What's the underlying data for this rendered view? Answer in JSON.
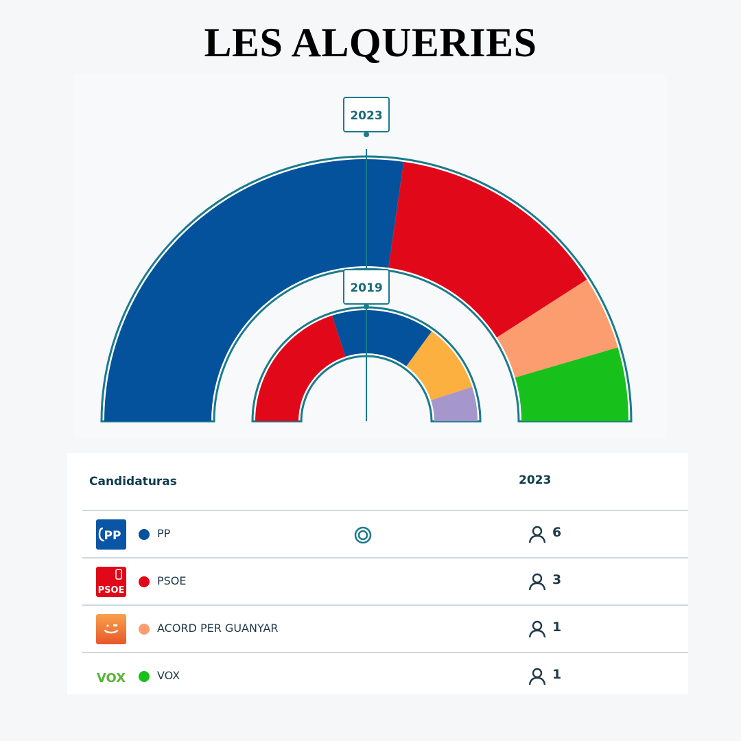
{
  "title": "LES ALQUERIES",
  "chart_data": {
    "type": "pie",
    "subtype": "parliament-semicircle",
    "rings": [
      {
        "label": "2023",
        "series": [
          {
            "name": "PP",
            "value": 6,
            "color": "#04529c"
          },
          {
            "name": "PSOE",
            "value": 3,
            "color": "#e10919"
          },
          {
            "name": "ACORD PER GUANYAR",
            "value": 1,
            "color": "#fc9d6f"
          },
          {
            "name": "VOX",
            "value": 1,
            "color": "#18c01c"
          }
        ]
      },
      {
        "label": "2019",
        "series": [
          {
            "name": "PSOE",
            "value": 4,
            "color": "#e10919"
          },
          {
            "name": "PP",
            "value": 3,
            "color": "#04529c"
          },
          {
            "name": "",
            "value": 2,
            "color": "#fbb040"
          },
          {
            "name": "",
            "value": 1,
            "color": "#a596cc"
          }
        ]
      }
    ],
    "accent_color": "#1a7a8c"
  },
  "table": {
    "header": {
      "candidatures": "Candidaturas",
      "year": "2023"
    },
    "rows": [
      {
        "party": "PP",
        "seats": "6",
        "color": "#04529c",
        "logo_text": "PP",
        "logo_bg": "#0a55a5",
        "icon": "pp-logo-icon",
        "winner": true
      },
      {
        "party": "PSOE",
        "seats": "3",
        "color": "#e10919",
        "logo_text": "PSOE",
        "logo_bg": "#e10919",
        "icon": "psoe-logo-icon",
        "winner": false
      },
      {
        "party": "ACORD PER GUANYAR",
        "seats": "1",
        "color": "#fc9d6f",
        "logo_text": "",
        "logo_bg": "#f07a3c",
        "icon": "acord-logo-icon",
        "winner": false
      },
      {
        "party": "VOX",
        "seats": "1",
        "color": "#18c01c",
        "logo_text": "VOX",
        "logo_bg": "transparent",
        "icon": "vox-logo-icon",
        "winner": false
      }
    ]
  }
}
